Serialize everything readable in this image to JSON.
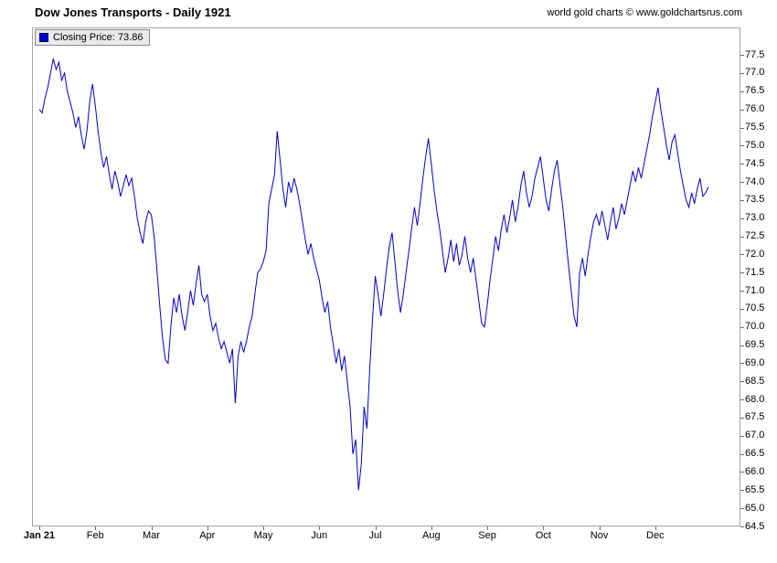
{
  "header": {
    "title": "Dow Jones Transports - Daily 1921",
    "copyright": "world gold charts © www.goldchartsrus.com"
  },
  "legend": {
    "label": "Closing Price: 73.86",
    "swatch_color": "#0000cd"
  },
  "chart_data": {
    "type": "line",
    "title": "Dow Jones Transports - Daily 1921",
    "xlabel": "",
    "ylabel": "",
    "grid": false,
    "legend_position": "top-left",
    "last_close": 73.86,
    "ylim": [
      64.5,
      78.26
    ],
    "y_ticks": [
      "77.5",
      "77.0",
      "76.5",
      "76.0",
      "75.5",
      "75.0",
      "74.5",
      "74.0",
      "73.5",
      "73.0",
      "72.5",
      "72.0",
      "71.5",
      "71.0",
      "70.5",
      "70.0",
      "69.5",
      "69.0",
      "68.5",
      "68.0",
      "67.5",
      "67.0",
      "66.5",
      "66.0",
      "65.5",
      "65.0",
      "64.5"
    ],
    "x_ticks": {
      "indices": [
        0,
        20,
        40,
        60,
        80,
        100,
        120,
        140,
        160,
        180,
        200,
        220
      ],
      "labels": [
        "Jan 21",
        "Feb",
        "Mar",
        "Apr",
        "May",
        "Jun",
        "Jul",
        "Aug",
        "Sep",
        "Oct",
        "Nov",
        "Dec"
      ]
    },
    "series": [
      {
        "name": "Closing Price",
        "color": "#0000cd",
        "values": [
          76.0,
          75.9,
          76.3,
          76.6,
          77.0,
          77.4,
          77.1,
          77.3,
          76.8,
          77.0,
          76.5,
          76.2,
          75.9,
          75.5,
          75.8,
          75.3,
          74.9,
          75.4,
          76.2,
          76.7,
          76.1,
          75.4,
          74.8,
          74.4,
          74.7,
          74.2,
          73.8,
          74.3,
          74.0,
          73.6,
          73.9,
          74.2,
          73.9,
          74.1,
          73.6,
          73.0,
          72.6,
          72.3,
          72.9,
          73.2,
          73.1,
          72.5,
          71.6,
          70.6,
          69.7,
          69.1,
          69.0,
          70.0,
          70.8,
          70.4,
          70.9,
          70.3,
          69.9,
          70.4,
          71.0,
          70.6,
          71.2,
          71.7,
          70.9,
          70.7,
          70.9,
          70.3,
          69.9,
          70.1,
          69.7,
          69.4,
          69.6,
          69.3,
          69.0,
          69.4,
          67.9,
          69.2,
          69.6,
          69.3,
          69.6,
          70.0,
          70.3,
          70.9,
          71.5,
          71.6,
          71.8,
          72.1,
          73.4,
          73.8,
          74.2,
          75.4,
          74.6,
          73.8,
          73.3,
          74.0,
          73.7,
          74.1,
          73.8,
          73.4,
          72.9,
          72.4,
          72.0,
          72.3,
          71.9,
          71.6,
          71.3,
          70.8,
          70.4,
          70.7,
          70.0,
          69.5,
          69.0,
          69.4,
          68.8,
          69.2,
          68.5,
          67.8,
          66.5,
          66.9,
          65.5,
          66.2,
          67.8,
          67.2,
          68.8,
          70.2,
          71.4,
          70.9,
          70.3,
          70.9,
          71.6,
          72.2,
          72.6,
          71.8,
          71.0,
          70.4,
          70.9,
          71.5,
          72.1,
          72.7,
          73.3,
          72.8,
          73.4,
          74.1,
          74.7,
          75.2,
          74.5,
          73.8,
          73.2,
          72.7,
          72.1,
          71.5,
          71.9,
          72.4,
          71.8,
          72.3,
          71.7,
          72.0,
          72.5,
          71.9,
          71.5,
          71.9,
          71.3,
          70.7,
          70.1,
          70.0,
          70.6,
          71.3,
          71.9,
          72.5,
          72.1,
          72.7,
          73.1,
          72.6,
          73.0,
          73.5,
          72.9,
          73.3,
          73.9,
          74.3,
          73.7,
          73.3,
          73.6,
          74.1,
          74.4,
          74.7,
          74.1,
          73.5,
          73.2,
          73.8,
          74.3,
          74.6,
          73.9,
          73.3,
          72.5,
          71.7,
          71.0,
          70.3,
          70.0,
          71.5,
          71.9,
          71.4,
          72.0,
          72.5,
          72.9,
          73.1,
          72.8,
          73.2,
          72.8,
          72.4,
          72.9,
          73.3,
          72.7,
          73.0,
          73.4,
          73.1,
          73.5,
          73.9,
          74.3,
          74.0,
          74.4,
          74.1,
          74.5,
          74.9,
          75.3,
          75.8,
          76.2,
          76.6,
          76.0,
          75.5,
          75.0,
          74.6,
          75.1,
          75.3,
          74.8,
          74.3,
          73.9,
          73.5,
          73.3,
          73.7,
          73.4,
          73.8,
          74.1,
          73.6,
          73.7,
          73.86
        ]
      }
    ]
  }
}
